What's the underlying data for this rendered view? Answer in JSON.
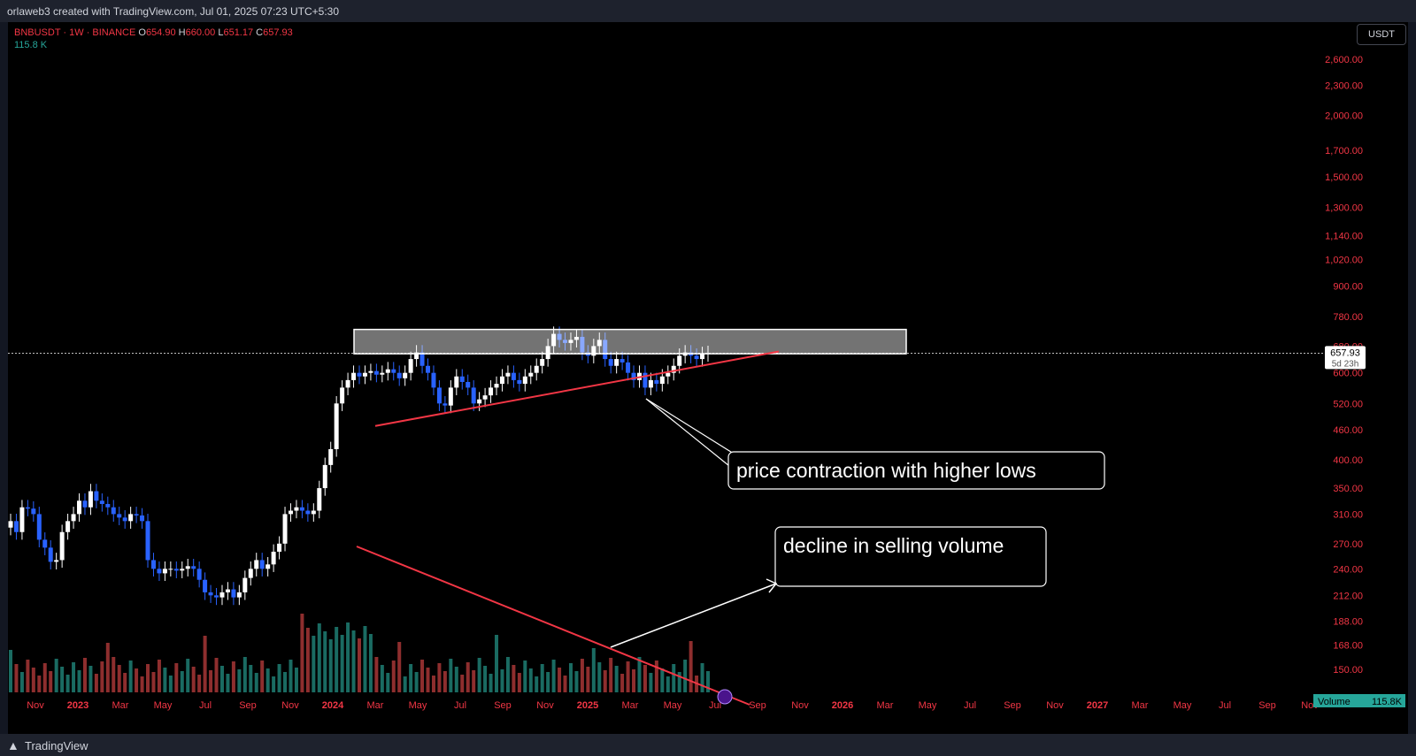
{
  "header": {
    "credit": "orlaweb3 created with TradingView.com, Jul 01, 2025 07:23 UTC+5:30"
  },
  "footer": {
    "logo_icon": "tradingview-logo-icon",
    "brand": "TradingView"
  },
  "legend": {
    "symbol": "BNBUSDT · 1W · BINANCE",
    "o_label": "O",
    "o": "654.90",
    "h_label": "H",
    "h": "660.00",
    "l_label": "L",
    "l": "651.17",
    "c_label": "C",
    "c": "657.93",
    "volume": "115.8 K"
  },
  "currency_button": "USDT",
  "price_tag": {
    "price": "657.93",
    "countdown": "5d 23h"
  },
  "volume_tag": {
    "label": "Volume",
    "value": "115.8K"
  },
  "annotations": {
    "contraction": "price contraction with higher lows",
    "volume": "decline in selling volume"
  },
  "colors": {
    "up": "#ffffff",
    "down": "#2962ff",
    "vol_up": "#1a6b62",
    "vol_down": "#8e2e2e",
    "axis_text": "#f23645",
    "trendline": "#f23645",
    "zone": "#ffffff"
  },
  "chart_data": {
    "type": "candlestick",
    "symbol": "BNBUSDT",
    "interval": "1W",
    "exchange": "BINANCE",
    "y_scale": "log",
    "y_ticks": [
      150,
      168,
      188,
      212,
      240,
      270,
      310,
      350,
      400,
      460,
      520,
      600,
      680,
      780,
      900,
      1020,
      1140,
      1300,
      1500,
      1700,
      2000,
      2300,
      2600
    ],
    "y_tick_labels": [
      "150.00",
      "168.00",
      "188.00",
      "212.00",
      "240.00",
      "270.00",
      "310.00",
      "350.00",
      "400.00",
      "460.00",
      "520.00",
      "600.00",
      "680.00",
      "780.00",
      "900.00",
      "1,020.00",
      "1,140.00",
      "1,300.00",
      "1,500.00",
      "1,700.00",
      "2,000.00",
      "2,300.00",
      "2,600.00"
    ],
    "x_tick_labels": [
      "Nov",
      "2023",
      "Mar",
      "May",
      "Jul",
      "Sep",
      "Nov",
      "2024",
      "Mar",
      "May",
      "Jul",
      "Sep",
      "Nov",
      "2025",
      "Mar",
      "May",
      "Jul",
      "Sep",
      "Nov",
      "2026",
      "Mar",
      "May",
      "Jul",
      "Sep",
      "Nov",
      "2027",
      "Mar",
      "May",
      "Jul",
      "Sep",
      "Nov"
    ],
    "x_tick_dates": [
      "2022-11",
      "2023-01",
      "2023-03",
      "2023-05",
      "2023-07",
      "2023-09",
      "2023-11",
      "2024-01",
      "2024-03",
      "2024-05",
      "2024-07",
      "2024-09",
      "2024-11",
      "2025-01",
      "2025-03",
      "2025-05",
      "2025-07",
      "2025-09",
      "2025-11",
      "2026-01",
      "2026-03",
      "2026-05",
      "2026-07",
      "2026-09",
      "2026-11",
      "2027-01",
      "2027-03",
      "2027-05",
      "2027-07",
      "2027-09",
      "2027-11"
    ],
    "bold_x_ticks": [
      "2023",
      "2024",
      "2025",
      "2026",
      "2027"
    ],
    "last_price": 657.93,
    "resistance_zone": {
      "from": "2024-02",
      "to": "2026-04",
      "low": 656,
      "high": 735
    },
    "lines": [
      {
        "name": "higher-lows",
        "from": [
          "2024-03",
          468
        ],
        "to": [
          "2025-10",
          663
        ]
      },
      {
        "name": "volume-decline",
        "from": [
          "2024-01",
          290
        ],
        "to": [
          "2025-07",
          142
        ]
      }
    ],
    "closes": [
      300,
      285,
      320,
      318,
      310,
      275,
      265,
      248,
      250,
      285,
      300,
      310,
      330,
      320,
      345,
      330,
      325,
      320,
      310,
      305,
      300,
      310,
      308,
      300,
      250,
      240,
      235,
      240,
      240,
      238,
      240,
      243,
      240,
      228,
      215,
      212,
      210,
      215,
      218,
      210,
      215,
      230,
      240,
      250,
      240,
      245,
      260,
      270,
      310,
      315,
      320,
      315,
      310,
      315,
      350,
      390,
      420,
      520,
      560,
      580,
      600,
      590,
      600,
      605,
      595,
      600,
      610,
      600,
      585,
      600,
      640,
      660,
      620,
      600,
      560,
      520,
      515,
      560,
      590,
      575,
      560,
      520,
      530,
      540,
      560,
      570,
      590,
      600,
      580,
      570,
      590,
      600,
      620,
      640,
      680,
      720,
      700,
      690,
      700,
      710,
      660,
      650,
      680,
      700,
      640,
      620,
      640,
      630,
      600,
      580,
      600,
      560,
      580,
      570,
      590,
      600,
      620,
      650,
      660,
      650,
      640,
      655,
      658
    ]
  }
}
